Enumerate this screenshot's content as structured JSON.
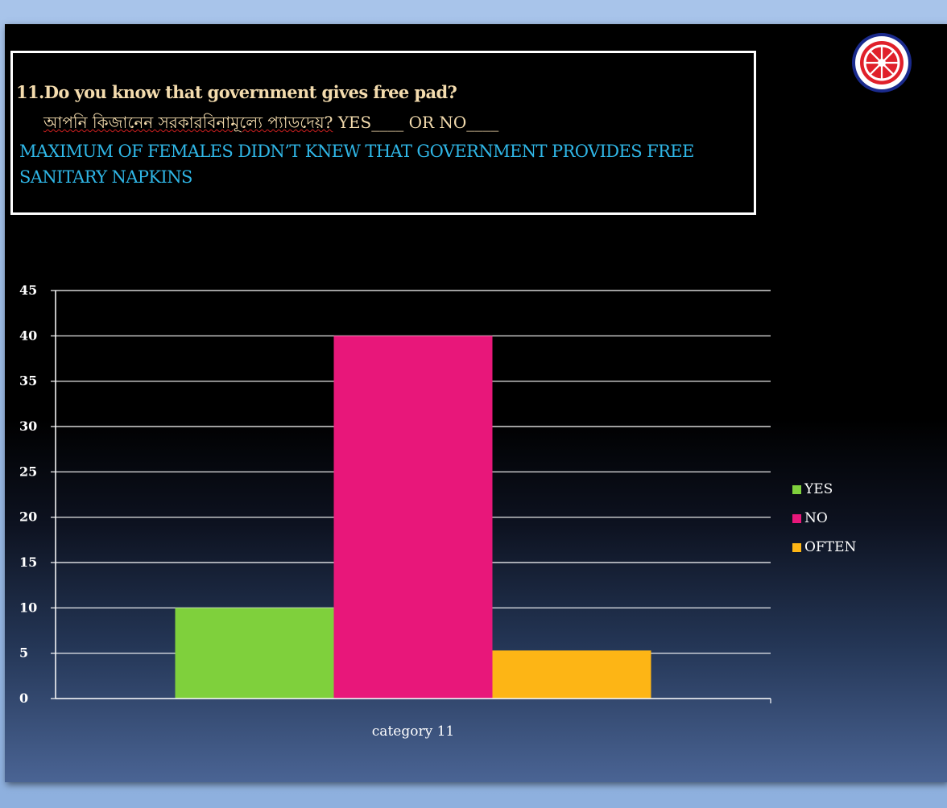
{
  "question": {
    "title": "11.Do you know that government gives free pad?",
    "bengali": "আপনি কিজানেন সরকারবিনামূল্যে প্যাডদেয়?",
    "options": " YES____ OR  NO____",
    "finding": "MAXIMUM OF FEMALES DIDN’T  KNEW THAT GOVERNMENT PROVIDES FREE  SANITARY  NAPKINS"
  },
  "logo_icon": "wheel-emblem-icon",
  "chart_data": {
    "type": "bar",
    "categories": [
      "category 11"
    ],
    "series": [
      {
        "name": "YES",
        "values": [
          10
        ],
        "color": "#7fd03c"
      },
      {
        "name": "NO",
        "values": [
          40
        ],
        "color": "#e8177a"
      },
      {
        "name": "OFTEN",
        "values": [
          5.3
        ],
        "color": "#fdb515"
      }
    ],
    "ylim": [
      0,
      45
    ],
    "yticks": [
      "0",
      "5",
      "10",
      "15",
      "20",
      "25",
      "30",
      "35",
      "40",
      "45"
    ],
    "grid": true,
    "legend": "right"
  }
}
